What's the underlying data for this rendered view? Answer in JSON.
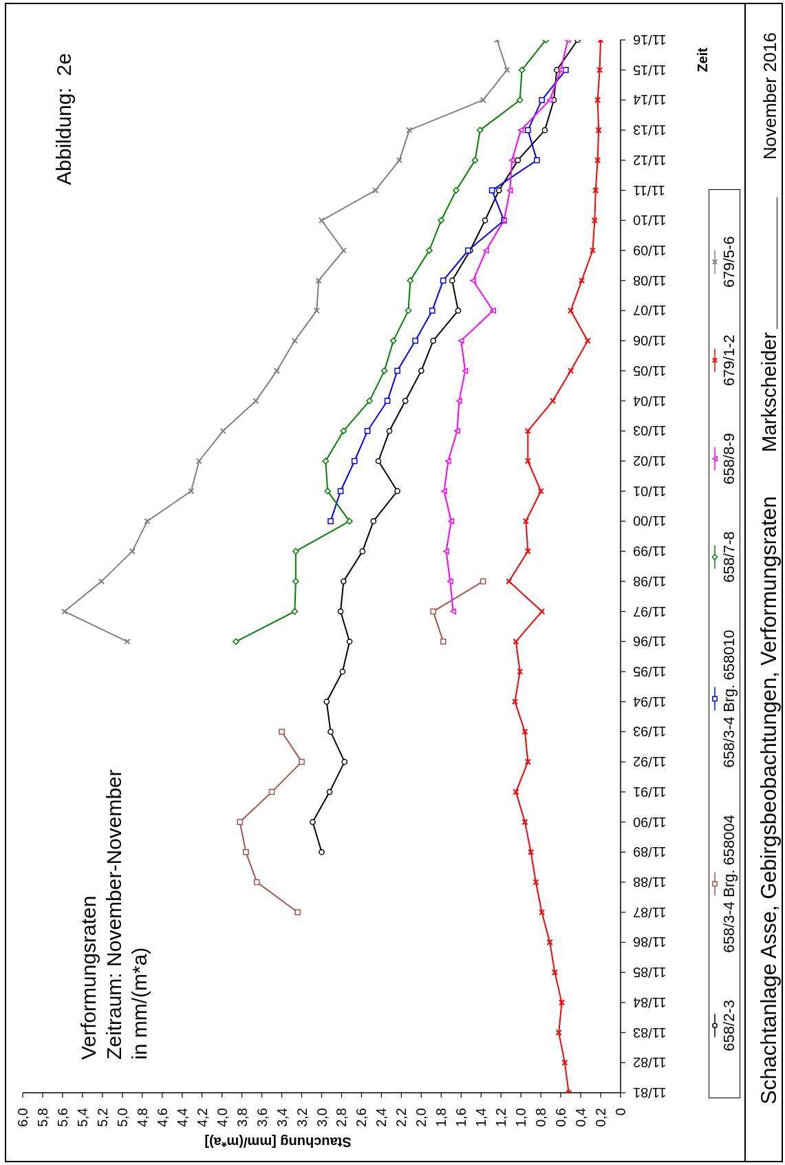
{
  "chart_data": {
    "type": "line",
    "orientation": "horizontal",
    "title": "Verformungsraten",
    "subtitle": "Zeitraum: November-November\nin mm/(m*a)",
    "xlabel": "Stauchung [mm/(m*a)]",
    "ylabel": "Zeit",
    "annotations": [
      "Abbildung:  2e",
      "Schachtanlage Asse, Gebirgsbeobachtungen, Verformungsraten",
      "Markscheider",
      "November 2016"
    ],
    "categories": [
      "11/16",
      "11/15",
      "11/14",
      "11/13",
      "11/12",
      "11/11",
      "11/10",
      "11/09",
      "11/08",
      "11/07",
      "11/06",
      "11/05",
      "11/04",
      "11/03",
      "11/02",
      "11/01",
      "11/00",
      "11/99",
      "11/98",
      "11/97",
      "11/96",
      "11/95",
      "11/94",
      "11/93",
      "11/92",
      "11/91",
      "11/90",
      "11/89",
      "11/88",
      "11/87",
      "11/86",
      "11/85",
      "11/84",
      "11/83",
      "11/82",
      "11/81"
    ],
    "series": [
      {
        "name": "658/2-3",
        "color": "#000000",
        "marker": "circle",
        "values": [
          0.43,
          0.64,
          0.67,
          0.76,
          1.03,
          1.22,
          1.36,
          1.51,
          1.69,
          1.63,
          1.88,
          2.0,
          2.16,
          2.32,
          2.43,
          2.24,
          2.48,
          2.59,
          2.78,
          2.81,
          2.72,
          2.79,
          2.95,
          2.91,
          2.77,
          2.92,
          3.09,
          3.0,
          null,
          null,
          null,
          null,
          null,
          null,
          null,
          null
        ]
      },
      {
        "name": "658/3-4 Brg. 658004",
        "color": "#a5524f",
        "marker": "square",
        "values": [
          null,
          null,
          null,
          null,
          null,
          null,
          null,
          null,
          null,
          null,
          null,
          null,
          null,
          null,
          null,
          null,
          null,
          null,
          1.38,
          1.88,
          1.78,
          null,
          null,
          3.4,
          3.2,
          3.5,
          3.82,
          3.76,
          3.65,
          3.24,
          null,
          null,
          null,
          null,
          null,
          null
        ]
      },
      {
        "name": "658/3-4 Brg. 658010",
        "color": "#0000ff",
        "marker": "square",
        "values": [
          null,
          0.55,
          0.79,
          0.93,
          0.84,
          1.29,
          1.17,
          1.53,
          1.78,
          1.89,
          2.06,
          2.24,
          2.34,
          2.54,
          2.67,
          2.81,
          2.91,
          null,
          null,
          null,
          null,
          null,
          null,
          null,
          null,
          null,
          null,
          null,
          null,
          null,
          null,
          null,
          null,
          null,
          null,
          null
        ]
      },
      {
        "name": "658/7-8",
        "color": "#008000",
        "marker": "diamond",
        "values": [
          0.75,
          0.99,
          1.01,
          1.41,
          1.46,
          1.65,
          1.8,
          1.92,
          2.11,
          2.13,
          2.28,
          2.37,
          2.52,
          2.78,
          2.96,
          2.94,
          2.72,
          3.26,
          3.26,
          3.27,
          3.86,
          null,
          null,
          null,
          null,
          null,
          null,
          null,
          null,
          null,
          null,
          null,
          null,
          null,
          null,
          null
        ]
      },
      {
        "name": "658/8-9",
        "color": "#ff00ff",
        "marker": "triangle",
        "values": [
          0.53,
          0.6,
          0.71,
          1.0,
          1.09,
          1.11,
          1.17,
          1.35,
          1.48,
          1.28,
          1.6,
          1.56,
          1.62,
          1.64,
          1.73,
          1.77,
          1.7,
          1.75,
          1.71,
          1.68,
          null,
          null,
          null,
          null,
          null,
          null,
          null,
          null,
          null,
          null,
          null,
          null,
          null,
          null,
          null,
          null
        ]
      },
      {
        "name": "679/1-2",
        "color": "#ff0000",
        "marker": "cross",
        "values": [
          0.2,
          0.21,
          0.23,
          0.22,
          0.23,
          0.25,
          0.26,
          0.28,
          0.39,
          0.5,
          0.33,
          0.5,
          0.68,
          0.93,
          0.93,
          0.8,
          0.95,
          0.93,
          1.12,
          0.79,
          1.05,
          1.01,
          1.06,
          0.96,
          0.93,
          1.05,
          0.96,
          0.9,
          0.85,
          0.79,
          0.71,
          0.66,
          0.59,
          0.62,
          0.56,
          0.52
        ]
      },
      {
        "name": "679/5-6",
        "color": "#808080",
        "marker": "cross",
        "values": [
          1.24,
          1.14,
          1.38,
          2.12,
          2.22,
          2.46,
          3.0,
          2.78,
          3.03,
          3.05,
          3.27,
          3.45,
          3.66,
          3.99,
          4.23,
          4.31,
          4.75,
          4.9,
          5.21,
          5.58,
          4.95,
          null,
          null,
          null,
          null,
          null,
          null,
          null,
          null,
          null,
          null,
          null,
          null,
          null,
          null,
          null
        ]
      }
    ],
    "xlim": [
      6,
      0
    ],
    "xticks": [
      0,
      {
        "value": 0.2,
        "label": "0,2"
      },
      {
        "value": 0.4,
        "label": "0,4"
      },
      {
        "value": 0.6,
        "label": "0,6"
      },
      {
        "value": 0.8,
        "label": "0,8"
      },
      {
        "value": 1,
        "label": "1,0"
      },
      {
        "value": 1.2,
        "label": "1,2"
      },
      {
        "value": 1.4,
        "label": "1,4"
      },
      {
        "value": 1.6,
        "label": "1,6"
      },
      {
        "value": 1.8,
        "label": "1,8"
      },
      {
        "value": 2,
        "label": "2,0"
      },
      {
        "value": 2.2,
        "label": "2,2"
      },
      {
        "value": 2.4,
        "label": "2,4"
      },
      {
        "value": 2.6,
        "label": "2,6"
      },
      {
        "value": 2.8,
        "label": "2,8"
      },
      {
        "value": 3,
        "label": "3,0"
      },
      {
        "value": 3.2,
        "label": "3,2"
      },
      {
        "value": 3.4,
        "label": "3,4"
      },
      {
        "value": 3.6,
        "label": "3,6"
      },
      {
        "value": 3.8,
        "label": "3,8"
      },
      {
        "value": 4,
        "label": "4,0"
      },
      {
        "value": 4.2,
        "label": "4,2"
      },
      {
        "value": 4.4,
        "label": "4,4"
      },
      {
        "value": 4.6,
        "label": "4,6"
      },
      {
        "value": 4.8,
        "label": "4,8"
      },
      {
        "value": 5,
        "label": "5,0"
      },
      {
        "value": 5.2,
        "label": "5,2"
      },
      {
        "value": 5.4,
        "label": "5,4"
      },
      {
        "value": 5.6,
        "label": "5,6"
      },
      {
        "value": 5.8,
        "label": "5,8"
      },
      {
        "value": 6,
        "label": "6,0"
      }
    ],
    "legend": "right"
  }
}
